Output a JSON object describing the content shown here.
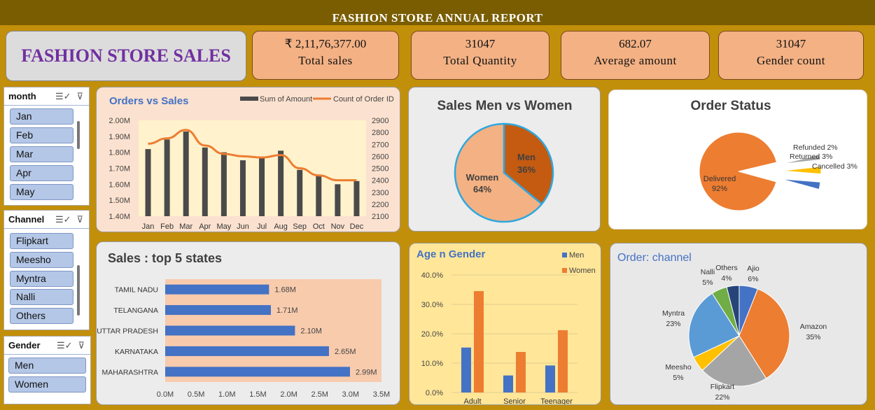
{
  "report_title": "FASHION  STORE ANNUAL REPORT",
  "dashboard_title": "FASHION STORE SALES",
  "kpis": [
    {
      "value": "₹ 2,11,76,377.00",
      "label": "Total sales"
    },
    {
      "value": "31047",
      "label": "Total Quantity"
    },
    {
      "value": "682.07",
      "label": "Average amount"
    },
    {
      "value": "31047",
      "label": "Gender count"
    }
  ],
  "slicers": {
    "month": {
      "title": "month",
      "items": [
        "Jan",
        "Feb",
        "Mar",
        "Apr",
        "May"
      ]
    },
    "channel": {
      "title": "Channel",
      "items": [
        "Flipkart",
        "Meesho",
        "Myntra",
        "Nalli",
        "Others"
      ]
    },
    "gender": {
      "title": "Gender",
      "items": [
        "Men",
        "Women"
      ]
    }
  },
  "colors": {
    "bar_dark": "#4a4a4a",
    "line_orange": "#ed7d31",
    "blue": "#4472c4",
    "orange": "#ed7d31",
    "gray": "#a5a5a5",
    "gold": "#ffc000",
    "lightblue": "#5b9bd5",
    "green": "#70ad47",
    "navy": "#264478"
  },
  "chart_data": [
    {
      "id": "orders_vs_sales",
      "type": "bar",
      "title": "Orders vs Sales",
      "categories": [
        "Jan",
        "Feb",
        "Mar",
        "Apr",
        "May",
        "Jun",
        "Jul",
        "Aug",
        "Sep",
        "Oct",
        "Nov",
        "Dec"
      ],
      "series": [
        {
          "name": "Sum of Amount",
          "type": "bar",
          "axis": "left",
          "values": [
            1820000,
            1880000,
            1930000,
            1830000,
            1800000,
            1750000,
            1770000,
            1810000,
            1690000,
            1660000,
            1600000,
            1620000
          ]
        },
        {
          "name": "Count of Order ID",
          "type": "line",
          "axis": "right",
          "values": [
            2705,
            2750,
            2820,
            2690,
            2620,
            2600,
            2590,
            2610,
            2500,
            2440,
            2400,
            2400
          ]
        }
      ],
      "ylim": [
        1400000,
        2000000
      ],
      "y_ticks": [
        "1.40M",
        "1.50M",
        "1.60M",
        "1.70M",
        "1.80M",
        "1.90M",
        "2.00M"
      ],
      "y2lim": [
        2100,
        2900
      ],
      "y2_ticks": [
        "2100",
        "2200",
        "2300",
        "2400",
        "2500",
        "2600",
        "2700",
        "2800",
        "2900"
      ],
      "legend": "top-right"
    },
    {
      "id": "sales_men_vs_women",
      "type": "pie",
      "title": "Sales Men vs Women",
      "slices": [
        {
          "label": "Men",
          "value": 36,
          "display": "36%"
        },
        {
          "label": "Women",
          "value": 64,
          "display": "64%"
        }
      ]
    },
    {
      "id": "order_status",
      "type": "pie",
      "title": "Order Status",
      "slices": [
        {
          "label": "Delivered",
          "value": 92,
          "display": "92%"
        },
        {
          "label": "Refunded",
          "value": 2,
          "display": "2%"
        },
        {
          "label": "Returned",
          "value": 3,
          "display": "3%"
        },
        {
          "label": "Cancelled",
          "value": 3,
          "display": "3%"
        }
      ]
    },
    {
      "id": "top_states",
      "type": "bar",
      "orientation": "horizontal",
      "title": "Sales : top 5 states",
      "categories": [
        "TAMIL NADU",
        "TELANGANA",
        "UTTAR PRADESH",
        "KARNATAKA",
        "MAHARASHTRA"
      ],
      "values": [
        1.68,
        1.71,
        2.1,
        2.65,
        2.99
      ],
      "labels": [
        "1.68M",
        "1.71M",
        "2.10M",
        "2.65M",
        "2.99M"
      ],
      "xlim": [
        0,
        3.5
      ],
      "x_ticks": [
        "0.0M",
        "0.5M",
        "1.0M",
        "1.5M",
        "2.0M",
        "2.5M",
        "3.0M",
        "3.5M"
      ]
    },
    {
      "id": "age_n_gender",
      "type": "bar",
      "title": "Age n Gender",
      "categories": [
        "Adult",
        "Senior",
        "Teenager"
      ],
      "series": [
        {
          "name": "Men",
          "values": [
            15.3,
            5.8,
            9.2
          ]
        },
        {
          "name": "Women",
          "values": [
            34.5,
            13.8,
            21.2
          ]
        }
      ],
      "ylim": [
        0,
        40
      ],
      "y_ticks": [
        "0.0%",
        "10.0%",
        "20.0%",
        "30.0%",
        "40.0%"
      ],
      "legend": "top-right"
    },
    {
      "id": "order_channel",
      "type": "pie",
      "title": "Order: channel",
      "slices": [
        {
          "label": "Ajio",
          "value": 6,
          "display": "6%"
        },
        {
          "label": "Amazon",
          "value": 35,
          "display": "35%"
        },
        {
          "label": "Flipkart",
          "value": 22,
          "display": "22%"
        },
        {
          "label": "Meesho",
          "value": 5,
          "display": "5%"
        },
        {
          "label": "Myntra",
          "value": 23,
          "display": "23%"
        },
        {
          "label": "Nalli",
          "value": 5,
          "display": "5%"
        },
        {
          "label": "Others",
          "value": 4,
          "display": "4%"
        }
      ]
    }
  ]
}
